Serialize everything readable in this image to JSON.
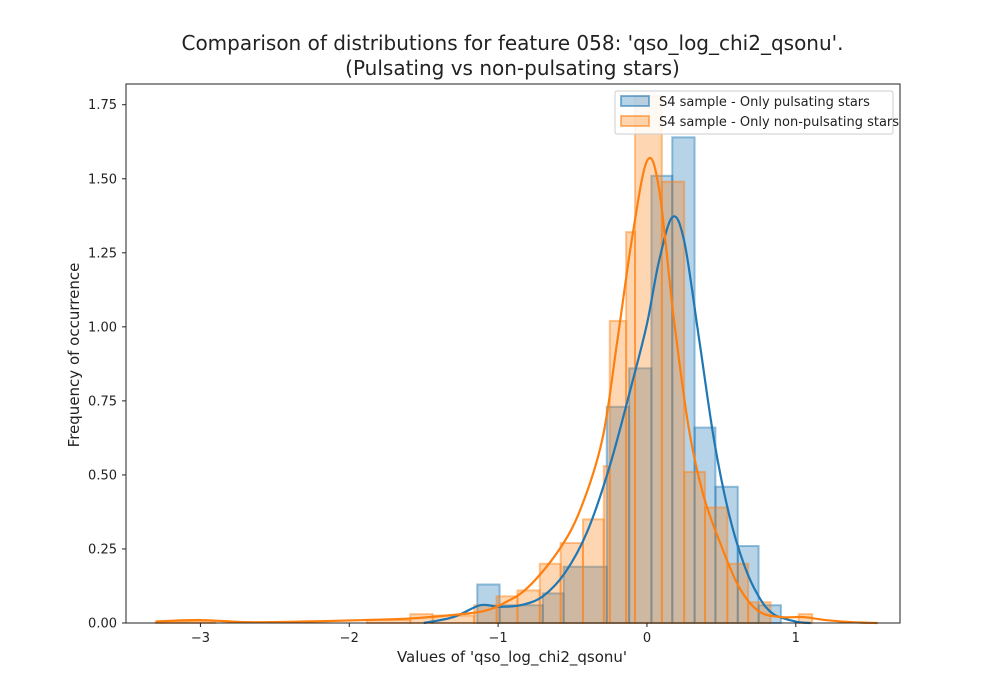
{
  "chart_data": {
    "type": "histogram",
    "title_line1": "Comparison of distributions for feature 058: 'qso_log_chi2_qsonu'.",
    "title_line2": "(Pulsating vs non-pulsating stars)",
    "xlabel": "Values of 'qso_log_chi2_qsonu'",
    "ylabel": "Frequency of occurrence",
    "xlim": [
      -3.5,
      1.7
    ],
    "ylim": [
      0,
      1.82
    ],
    "x_ticks": [
      -3,
      -2,
      -1,
      0,
      1
    ],
    "x_tick_labels": [
      "−3",
      "−2",
      "−1",
      "0",
      "1"
    ],
    "y_ticks": [
      0.0,
      0.25,
      0.5,
      0.75,
      1.0,
      1.25,
      1.5,
      1.75
    ],
    "y_tick_labels": [
      "0.00",
      "0.25",
      "0.50",
      "0.75",
      "1.00",
      "1.25",
      "1.50",
      "1.75"
    ],
    "grid": false,
    "legend_position": "top-right",
    "series": [
      {
        "name": "S4 sample - Only pulsating stars",
        "color": "#1f77b4",
        "bins": [
          {
            "x0": -1.14,
            "x1": -0.99,
            "y": 0.13
          },
          {
            "x0": -0.99,
            "x1": -0.7,
            "y": 0.06
          },
          {
            "x0": -0.7,
            "x1": -0.56,
            "y": 0.1
          },
          {
            "x0": -0.56,
            "x1": -0.27,
            "y": 0.19
          },
          {
            "x0": -0.27,
            "x1": -0.12,
            "y": 0.73
          },
          {
            "x0": -0.12,
            "x1": 0.03,
            "y": 0.86
          },
          {
            "x0": 0.03,
            "x1": 0.17,
            "y": 1.51
          },
          {
            "x0": 0.17,
            "x1": 0.32,
            "y": 1.64
          },
          {
            "x0": 0.32,
            "x1": 0.46,
            "y": 0.66
          },
          {
            "x0": 0.46,
            "x1": 0.61,
            "y": 0.46
          },
          {
            "x0": 0.61,
            "x1": 0.75,
            "y": 0.26
          },
          {
            "x0": 0.75,
            "x1": 0.9,
            "y": 0.06
          }
        ],
        "kde": [
          {
            "x": -1.5,
            "y": 0.0
          },
          {
            "x": -1.3,
            "y": 0.02
          },
          {
            "x": -1.12,
            "y": 0.06
          },
          {
            "x": -1.0,
            "y": 0.055
          },
          {
            "x": -0.85,
            "y": 0.06
          },
          {
            "x": -0.7,
            "y": 0.09
          },
          {
            "x": -0.55,
            "y": 0.17
          },
          {
            "x": -0.4,
            "y": 0.31
          },
          {
            "x": -0.25,
            "y": 0.53
          },
          {
            "x": -0.1,
            "y": 0.81
          },
          {
            "x": 0.0,
            "y": 1.01
          },
          {
            "x": 0.08,
            "y": 1.22
          },
          {
            "x": 0.17,
            "y": 1.37
          },
          {
            "x": 0.25,
            "y": 1.29
          },
          {
            "x": 0.35,
            "y": 0.96
          },
          {
            "x": 0.45,
            "y": 0.62
          },
          {
            "x": 0.55,
            "y": 0.37
          },
          {
            "x": 0.65,
            "y": 0.2
          },
          {
            "x": 0.75,
            "y": 0.09
          },
          {
            "x": 0.85,
            "y": 0.03
          },
          {
            "x": 1.0,
            "y": 0.005
          },
          {
            "x": 1.1,
            "y": 0.0
          }
        ]
      },
      {
        "name": "S4 sample - Only non-pulsating stars",
        "color": "#ff7f0e",
        "bins": [
          {
            "x0": -3.3,
            "x1": -2.9,
            "y": 0.005
          },
          {
            "x0": -1.88,
            "x1": -1.59,
            "y": 0.01
          },
          {
            "x0": -1.59,
            "x1": -1.44,
            "y": 0.03
          },
          {
            "x0": -1.44,
            "x1": -1.16,
            "y": 0.025
          },
          {
            "x0": -1.16,
            "x1": -1.01,
            "y": 0.06
          },
          {
            "x0": -1.01,
            "x1": -0.87,
            "y": 0.09
          },
          {
            "x0": -0.87,
            "x1": -0.72,
            "y": 0.11
          },
          {
            "x0": -0.72,
            "x1": -0.58,
            "y": 0.2
          },
          {
            "x0": -0.58,
            "x1": -0.43,
            "y": 0.27
          },
          {
            "x0": -0.43,
            "x1": -0.29,
            "y": 0.35
          },
          {
            "x0": -0.29,
            "x1": -0.25,
            "y": 0.53
          },
          {
            "x0": -0.25,
            "x1": -0.14,
            "y": 1.02
          },
          {
            "x0": -0.14,
            "x1": -0.08,
            "y": 1.32
          },
          {
            "x0": -0.08,
            "x1": 0.1,
            "y": 1.78
          },
          {
            "x0": 0.1,
            "x1": 0.25,
            "y": 1.49
          },
          {
            "x0": 0.25,
            "x1": 0.39,
            "y": 0.51
          },
          {
            "x0": 0.39,
            "x1": 0.54,
            "y": 0.39
          },
          {
            "x0": 0.54,
            "x1": 0.68,
            "y": 0.2
          },
          {
            "x0": 0.68,
            "x1": 0.83,
            "y": 0.07
          },
          {
            "x0": 1.02,
            "x1": 1.11,
            "y": 0.03
          }
        ],
        "kde": [
          {
            "x": -3.3,
            "y": 0.005
          },
          {
            "x": -3.0,
            "y": 0.01
          },
          {
            "x": -2.7,
            "y": 0.003
          },
          {
            "x": -2.3,
            "y": 0.005
          },
          {
            "x": -1.9,
            "y": 0.01
          },
          {
            "x": -1.6,
            "y": 0.015
          },
          {
            "x": -1.35,
            "y": 0.025
          },
          {
            "x": -1.1,
            "y": 0.04
          },
          {
            "x": -0.95,
            "y": 0.07
          },
          {
            "x": -0.8,
            "y": 0.12
          },
          {
            "x": -0.6,
            "y": 0.24
          },
          {
            "x": -0.45,
            "y": 0.38
          },
          {
            "x": -0.3,
            "y": 0.62
          },
          {
            "x": -0.2,
            "y": 0.95
          },
          {
            "x": -0.1,
            "y": 1.3
          },
          {
            "x": 0.0,
            "y": 1.56
          },
          {
            "x": 0.08,
            "y": 1.47
          },
          {
            "x": 0.18,
            "y": 1.03
          },
          {
            "x": 0.28,
            "y": 0.66
          },
          {
            "x": 0.38,
            "y": 0.43
          },
          {
            "x": 0.5,
            "y": 0.26
          },
          {
            "x": 0.62,
            "y": 0.12
          },
          {
            "x": 0.75,
            "y": 0.04
          },
          {
            "x": 0.9,
            "y": 0.02
          },
          {
            "x": 1.05,
            "y": 0.02
          },
          {
            "x": 1.2,
            "y": 0.01
          },
          {
            "x": 1.4,
            "y": 0.002
          },
          {
            "x": 1.55,
            "y": 0.0
          }
        ]
      }
    ]
  }
}
